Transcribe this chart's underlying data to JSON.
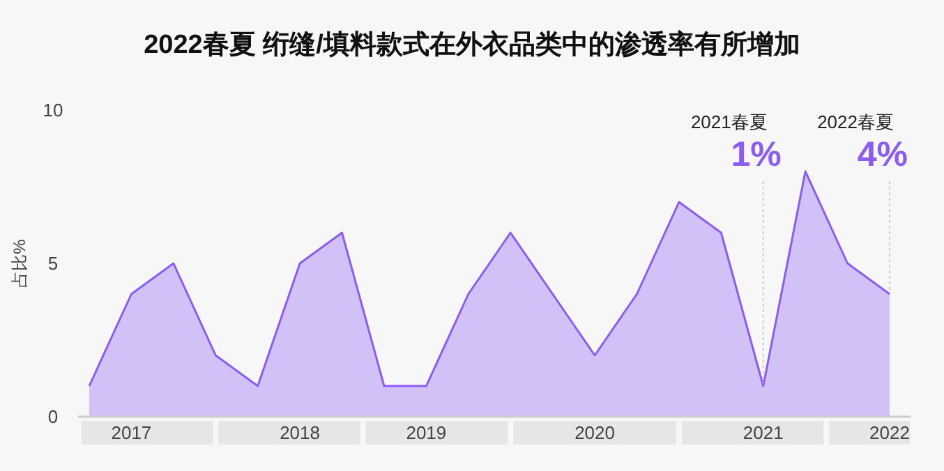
{
  "chart_data": {
    "type": "area",
    "title": "2022春夏 绗缝/填料款式在外衣品类中的渗透率有所增加",
    "ylabel": "占比%",
    "categories": [
      null,
      "2017",
      null,
      null,
      null,
      "2018",
      null,
      null,
      "2019",
      null,
      null,
      null,
      "2020",
      null,
      null,
      null,
      "2021",
      null,
      null,
      "2022"
    ],
    "series": [
      {
        "color": "#8b5cf6",
        "values": [
          1,
          4,
          5,
          2,
          1,
          5,
          6,
          1,
          1,
          4,
          6,
          4,
          2,
          4,
          7,
          6,
          1,
          8,
          5,
          4
        ]
      }
    ],
    "ylim": [
      0,
      10
    ],
    "yticks": [
      0,
      5,
      10
    ],
    "grid": false,
    "marker": "none",
    "line_style": "solid",
    "annotations": [
      "2021春夏",
      {
        "text": "1%",
        "x": "2021",
        "y": 1
      },
      "2022春夏",
      {
        "text": "4%",
        "x": "2022",
        "y": 4
      }
    ]
  }
}
